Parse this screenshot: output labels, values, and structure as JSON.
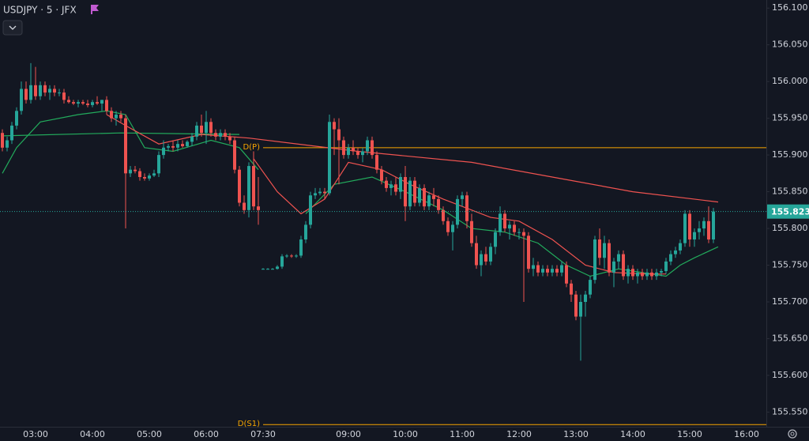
{
  "chart_data": {
    "type": "candlestick",
    "title": "USDJPY · 5 · JFX",
    "up_color": "#26a69a",
    "down_color": "#ef5350",
    "ylim": [
      155.53,
      156.111
    ],
    "yticks": [
      {
        "value": 156.1,
        "label": "156.100"
      },
      {
        "value": 156.05,
        "label": "156.050"
      },
      {
        "value": 156,
        "label": "156.000"
      },
      {
        "value": 155.95,
        "label": "155.950"
      },
      {
        "value": 155.9,
        "label": "155.900"
      },
      {
        "value": 155.85,
        "label": "155.850"
      },
      {
        "value": 155.8,
        "label": "155.800"
      },
      {
        "value": 155.75,
        "label": "155.750"
      },
      {
        "value": 155.7,
        "label": "155.700"
      },
      {
        "value": 155.65,
        "label": "155.650"
      },
      {
        "value": 155.6,
        "label": "155.600"
      },
      {
        "value": 155.55,
        "label": "155.550"
      }
    ],
    "grid": false,
    "last_price": 155.823,
    "levels": [
      {
        "name": "D(P)",
        "value": 155.91,
        "color": "#f7a600"
      },
      {
        "name": "D(S1)",
        "value": 155.533,
        "color": "#f7a600"
      }
    ],
    "categories": [
      null,
      null,
      null,
      null,
      null,
      null,
      null,
      "03:00",
      null,
      null,
      null,
      null,
      null,
      null,
      null,
      null,
      null,
      null,
      null,
      "04:00",
      null,
      null,
      null,
      null,
      null,
      null,
      null,
      null,
      null,
      null,
      null,
      "05:00",
      null,
      null,
      null,
      null,
      null,
      null,
      null,
      null,
      null,
      null,
      null,
      "06:00",
      null,
      null,
      null,
      null,
      null,
      null,
      null,
      null,
      null,
      null,
      null,
      "07:30",
      null,
      null,
      null,
      null,
      null,
      null,
      null,
      null,
      null,
      null,
      null,
      null,
      null,
      null,
      null,
      null,
      null,
      "09:00",
      null,
      null,
      null,
      null,
      null,
      null,
      null,
      null,
      null,
      null,
      null,
      "10:00",
      null,
      null,
      null,
      null,
      null,
      null,
      null,
      null,
      null,
      null,
      null,
      "11:00",
      null,
      null,
      null,
      null,
      null,
      null,
      null,
      null,
      null,
      null,
      null,
      "12:00",
      null,
      null,
      null,
      null,
      null,
      null,
      null,
      null,
      null,
      null,
      null,
      "13:00",
      null,
      null,
      null,
      null,
      null,
      null,
      null,
      null,
      null,
      null,
      null,
      "14:00",
      null,
      null,
      null,
      null,
      null,
      null,
      null,
      null,
      null,
      null,
      null,
      "15:00",
      null,
      null,
      null,
      null,
      null,
      null,
      null,
      null,
      null,
      null,
      null,
      "16:00"
    ],
    "candles": [
      [
        155.93,
        155.935,
        155.905,
        155.91
      ],
      [
        155.91,
        155.925,
        155.905,
        155.92
      ],
      [
        155.92,
        155.945,
        155.915,
        155.94
      ],
      [
        155.94,
        155.965,
        155.935,
        155.96
      ],
      [
        155.96,
        156.0,
        155.955,
        155.99
      ],
      [
        155.99,
        156.0,
        155.97,
        155.975
      ],
      [
        155.975,
        156.025,
        155.97,
        155.995
      ],
      [
        155.995,
        156.02,
        155.975,
        155.98
      ],
      [
        155.98,
        156.0,
        155.975,
        155.995
      ],
      [
        155.995,
        156.0,
        155.98,
        155.985
      ],
      [
        155.985,
        155.995,
        155.975,
        155.99
      ],
      [
        155.99,
        155.995,
        155.98,
        155.985
      ],
      [
        155.985,
        155.99,
        155.98,
        155.985
      ],
      [
        155.985,
        155.99,
        155.97,
        155.975
      ],
      [
        155.975,
        155.98,
        155.97,
        155.972
      ],
      [
        155.972,
        155.975,
        155.968,
        155.97
      ],
      [
        155.97,
        155.975,
        155.965,
        155.972
      ],
      [
        155.972,
        155.975,
        155.968,
        155.97
      ],
      [
        155.97,
        155.975,
        155.965,
        155.968
      ],
      [
        155.968,
        155.975,
        155.965,
        155.972
      ],
      [
        155.972,
        155.98,
        155.968,
        155.97
      ],
      [
        155.97,
        155.975,
        155.96,
        155.975
      ],
      [
        155.975,
        155.98,
        155.955,
        155.96
      ],
      [
        155.96,
        155.965,
        155.945,
        155.95
      ],
      [
        155.95,
        155.96,
        155.94,
        155.955
      ],
      [
        155.955,
        155.96,
        155.945,
        155.95
      ],
      [
        155.95,
        155.955,
        155.8,
        155.875
      ],
      [
        155.875,
        155.885,
        155.87,
        155.88
      ],
      [
        155.88,
        155.885,
        155.875,
        155.878
      ],
      [
        155.878,
        155.882,
        155.865,
        155.87
      ],
      [
        155.87,
        155.875,
        155.865,
        155.868
      ],
      [
        155.868,
        155.875,
        155.865,
        155.872
      ],
      [
        155.872,
        155.88,
        155.87,
        155.875
      ],
      [
        155.875,
        155.905,
        155.87,
        155.9
      ],
      [
        155.9,
        155.92,
        155.895,
        155.91
      ],
      [
        155.91,
        155.915,
        155.905,
        155.912
      ],
      [
        155.912,
        155.92,
        155.905,
        155.91
      ],
      [
        155.91,
        155.92,
        155.905,
        155.915
      ],
      [
        155.915,
        155.92,
        155.91,
        155.912
      ],
      [
        155.912,
        155.92,
        155.91,
        155.918
      ],
      [
        155.918,
        155.93,
        155.912,
        155.925
      ],
      [
        155.925,
        155.945,
        155.92,
        155.94
      ],
      [
        155.94,
        155.955,
        155.925,
        155.93
      ],
      [
        155.93,
        155.96,
        155.915,
        155.945
      ],
      [
        155.945,
        155.95,
        155.925,
        155.93
      ],
      [
        155.93,
        155.935,
        155.92,
        155.925
      ],
      [
        155.925,
        155.935,
        155.92,
        155.93
      ],
      [
        155.93,
        155.935,
        155.92,
        155.925
      ],
      [
        155.925,
        155.93,
        155.915,
        155.92
      ],
      [
        155.92,
        155.925,
        155.875,
        155.88
      ],
      [
        155.88,
        155.885,
        155.83,
        155.835
      ],
      [
        155.835,
        155.845,
        155.82,
        155.825
      ],
      [
        155.825,
        155.89,
        155.815,
        155.885
      ],
      [
        155.885,
        155.905,
        155.825,
        155.83
      ],
      [
        155.83,
        155.87,
        155.805,
        155.825
      ],
      [
        155.745,
        155.746,
        155.744,
        155.745
      ],
      [
        155.745,
        155.746,
        155.744,
        155.745
      ],
      [
        155.745,
        155.746,
        155.744,
        155.745
      ],
      [
        155.745,
        155.75,
        155.744,
        155.748
      ],
      [
        155.748,
        155.765,
        155.745,
        155.762
      ],
      [
        155.762,
        155.765,
        155.76,
        155.763
      ],
      [
        155.763,
        155.765,
        155.76,
        155.762
      ],
      [
        155.762,
        155.765,
        155.76,
        155.763
      ],
      [
        155.763,
        155.79,
        155.76,
        155.785
      ],
      [
        155.785,
        155.81,
        155.78,
        155.805
      ],
      [
        155.805,
        155.85,
        155.8,
        155.845
      ],
      [
        155.845,
        155.855,
        155.84,
        155.848
      ],
      [
        155.848,
        155.855,
        155.845,
        155.85
      ],
      [
        155.85,
        155.855,
        155.84,
        155.848
      ],
      [
        155.848,
        155.955,
        155.845,
        155.945
      ],
      [
        155.945,
        155.95,
        155.9,
        155.935
      ],
      [
        155.935,
        155.95,
        155.86,
        155.92
      ],
      [
        155.92,
        155.925,
        155.895,
        155.9
      ],
      [
        155.9,
        155.915,
        155.895,
        155.91
      ],
      [
        155.91,
        155.92,
        155.9,
        155.905
      ],
      [
        155.905,
        155.91,
        155.895,
        155.9
      ],
      [
        155.9,
        155.91,
        155.89,
        155.905
      ],
      [
        155.905,
        155.925,
        155.9,
        155.92
      ],
      [
        155.92,
        155.925,
        155.895,
        155.9
      ],
      [
        155.9,
        155.905,
        155.875,
        155.88
      ],
      [
        155.88,
        155.885,
        155.86,
        155.865
      ],
      [
        155.865,
        155.87,
        155.85,
        155.855
      ],
      [
        155.855,
        155.865,
        155.845,
        155.86
      ],
      [
        155.86,
        155.87,
        155.845,
        155.85
      ],
      [
        155.85,
        155.875,
        155.84,
        155.87
      ],
      [
        155.87,
        155.885,
        155.81,
        155.83
      ],
      [
        155.83,
        155.87,
        155.825,
        155.865
      ],
      [
        155.865,
        155.87,
        155.83,
        155.835
      ],
      [
        155.835,
        155.86,
        155.83,
        155.855
      ],
      [
        155.855,
        155.86,
        155.825,
        155.83
      ],
      [
        155.83,
        155.85,
        155.825,
        155.845
      ],
      [
        155.845,
        155.855,
        155.83,
        155.84
      ],
      [
        155.84,
        155.845,
        155.82,
        155.825
      ],
      [
        155.825,
        155.83,
        155.805,
        155.81
      ],
      [
        155.81,
        155.815,
        155.79,
        155.795
      ],
      [
        155.795,
        155.81,
        155.77,
        155.805
      ],
      [
        155.805,
        155.845,
        155.8,
        155.84
      ],
      [
        155.84,
        155.85,
        155.83,
        155.845
      ],
      [
        155.845,
        155.85,
        155.8,
        155.81
      ],
      [
        155.81,
        155.82,
        155.775,
        155.78
      ],
      [
        155.78,
        155.79,
        155.745,
        155.75
      ],
      [
        155.75,
        155.77,
        155.735,
        155.765
      ],
      [
        155.765,
        155.775,
        155.75,
        155.755
      ],
      [
        155.755,
        155.78,
        155.75,
        155.775
      ],
      [
        155.775,
        155.8,
        155.765,
        155.795
      ],
      [
        155.795,
        155.83,
        155.79,
        155.82
      ],
      [
        155.82,
        155.825,
        155.795,
        155.8
      ],
      [
        155.8,
        155.81,
        155.785,
        155.805
      ],
      [
        155.805,
        155.81,
        155.79,
        155.795
      ],
      [
        155.795,
        155.8,
        155.785,
        155.795
      ],
      [
        155.795,
        155.8,
        155.7,
        155.79
      ],
      [
        155.79,
        155.795,
        155.74,
        155.745
      ],
      [
        155.745,
        155.76,
        155.735,
        155.75
      ],
      [
        155.75,
        155.755,
        155.735,
        155.74
      ],
      [
        155.74,
        155.75,
        155.735,
        155.745
      ],
      [
        155.745,
        155.75,
        155.735,
        155.74
      ],
      [
        155.74,
        155.75,
        155.735,
        155.745
      ],
      [
        155.745,
        155.75,
        155.735,
        155.74
      ],
      [
        155.74,
        155.755,
        155.735,
        155.75
      ],
      [
        155.75,
        155.755,
        155.72,
        155.725
      ],
      [
        155.725,
        155.73,
        155.7,
        155.71
      ],
      [
        155.71,
        155.715,
        155.675,
        155.68
      ],
      [
        155.68,
        155.71,
        155.62,
        155.7
      ],
      [
        155.7,
        155.715,
        155.68,
        155.71
      ],
      [
        155.71,
        155.735,
        155.705,
        155.73
      ],
      [
        155.73,
        155.79,
        155.725,
        155.785
      ],
      [
        155.785,
        155.8,
        155.75,
        155.76
      ],
      [
        155.76,
        155.79,
        155.745,
        155.78
      ],
      [
        155.78,
        155.785,
        155.735,
        155.74
      ],
      [
        155.74,
        155.76,
        155.72,
        155.755
      ],
      [
        155.755,
        155.77,
        155.745,
        155.765
      ],
      [
        155.765,
        155.77,
        155.73,
        155.735
      ],
      [
        155.735,
        155.75,
        155.725,
        155.745
      ],
      [
        155.745,
        155.75,
        155.73,
        155.735
      ],
      [
        155.735,
        155.745,
        155.725,
        155.74
      ],
      [
        155.74,
        155.745,
        155.73,
        155.735
      ],
      [
        155.735,
        155.745,
        155.73,
        155.74
      ],
      [
        155.74,
        155.745,
        155.73,
        155.735
      ],
      [
        155.735,
        155.745,
        155.73,
        155.74
      ],
      [
        155.74,
        155.745,
        155.735,
        155.742
      ],
      [
        155.742,
        155.76,
        155.738,
        155.755
      ],
      [
        155.755,
        155.77,
        155.75,
        155.765
      ],
      [
        155.765,
        155.775,
        155.76,
        155.77
      ],
      [
        155.77,
        155.785,
        155.765,
        155.78
      ],
      [
        155.78,
        155.825,
        155.775,
        155.82
      ],
      [
        155.82,
        155.825,
        155.775,
        155.785
      ],
      [
        155.785,
        155.8,
        155.775,
        155.795
      ],
      [
        155.795,
        155.81,
        155.785,
        155.8
      ],
      [
        155.8,
        155.815,
        155.79,
        155.81
      ],
      [
        155.81,
        155.83,
        155.78,
        155.785
      ],
      [
        155.785,
        155.828,
        155.78,
        155.823
      ],
      null,
      null,
      null,
      null,
      null,
      null,
      null
    ],
    "series": [
      {
        "color": "#22ab5c",
        "x": [
          0,
          25,
          50
        ],
        "values": [
          155.926,
          155.93,
          155.928
        ]
      },
      {
        "color": "#22ab5c",
        "x": [
          0,
          3,
          8,
          16,
          22,
          26,
          30,
          36,
          44,
          50,
          54,
          59,
          64,
          70,
          78,
          85,
          93,
          99,
          106,
          113,
          119,
          124,
          130,
          135,
          140,
          143,
          146,
          151
        ],
        "values": [
          155.875,
          155.91,
          155.945,
          155.955,
          155.96,
          155.955,
          155.91,
          155.905,
          155.92,
          155.91,
          155.88,
          null,
          155.82,
          155.86,
          155.87,
          155.85,
          155.825,
          155.8,
          155.795,
          155.78,
          155.75,
          155.735,
          155.745,
          155.74,
          155.735,
          155.75,
          155.76,
          155.775
        ]
      },
      {
        "color": "#f05350",
        "x": [
          22,
          26,
          33,
          42,
          52,
          75,
          99,
          116,
          133,
          151
        ],
        "values": [
          155.955,
          155.94,
          155.915,
          155.928,
          155.923,
          155.905,
          155.89,
          155.87,
          155.85,
          155.836
        ]
      },
      {
        "color": "#f05350",
        "x": [
          53,
          58,
          63,
          68,
          73,
          80,
          86,
          93,
          103,
          109,
          116,
          123,
          129,
          136,
          140
        ],
        "values": [
          155.895,
          155.85,
          155.82,
          155.84,
          155.89,
          155.88,
          155.86,
          155.84,
          155.815,
          155.81,
          155.785,
          155.75,
          155.74,
          155.738,
          155.738
        ]
      }
    ]
  }
}
